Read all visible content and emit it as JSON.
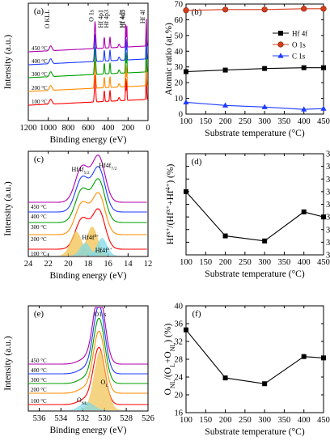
{
  "chart_data": [
    {
      "panel": "(a)",
      "type": "line",
      "xlabel": "Binding energy (eV)",
      "ylabel": "Intensity (a.u.)",
      "xlim": [
        1200,
        0
      ],
      "xticks": [
        1200,
        1000,
        800,
        600,
        400,
        200,
        0
      ],
      "series": [
        {
          "name": "100 °C",
          "color": "#ff0000"
        },
        {
          "name": "200 °C",
          "color": "#ff8c00"
        },
        {
          "name": "300 °C",
          "color": "#00a000"
        },
        {
          "name": "400 °C",
          "color": "#1e3cff"
        },
        {
          "name": "450 °C",
          "color": "#b000b0"
        }
      ],
      "annotations": [
        {
          "text": "O KLL",
          "x": 975
        },
        {
          "text": "O 1s",
          "x": 531
        },
        {
          "text": "Hf 4p1",
          "x": 438
        },
        {
          "text": "Hf 4p3",
          "x": 381
        },
        {
          "text": "Hf 4d3",
          "x": 224
        },
        {
          "text": "Hf 4d5",
          "x": 213
        },
        {
          "text": "Hf 4f",
          "x": 17
        }
      ]
    },
    {
      "panel": "(b)",
      "type": "line",
      "xlabel": "Substrate temperature (°C)",
      "ylabel": "Atomic ratio (at.%)",
      "xlim": [
        100,
        450
      ],
      "ylim": [
        0,
        70
      ],
      "xticks": [
        100,
        150,
        200,
        250,
        300,
        350,
        400,
        450
      ],
      "yticks": [
        0,
        10,
        20,
        30,
        40,
        50,
        60,
        70
      ],
      "legend": "top-right",
      "x": [
        100,
        200,
        300,
        400,
        450
      ],
      "series": [
        {
          "name": "Hf 4f",
          "color": "#000000",
          "marker": "square",
          "values": [
            27,
            28,
            29,
            29.5,
            29.5
          ]
        },
        {
          "name": "O 1s",
          "color": "#d43f1e",
          "marker": "circle",
          "values": [
            66,
            66.5,
            66.5,
            67,
            67
          ]
        },
        {
          "name": "C 1s",
          "color": "#1e3cff",
          "marker": "triangle",
          "values": [
            7.5,
            5.5,
            4.5,
            3,
            3.5
          ]
        }
      ]
    },
    {
      "panel": "(c)",
      "type": "line",
      "xlabel": "Binding energy (eV)",
      "ylabel": "Intensity (a.u.)",
      "xlim": [
        24,
        12
      ],
      "xticks": [
        24,
        22,
        20,
        18,
        16,
        14,
        12
      ],
      "series": [
        {
          "name": "100 °C",
          "color": "#ff0000"
        },
        {
          "name": "200 °C",
          "color": "#ff8c00"
        },
        {
          "name": "300 °C",
          "color": "#00a000"
        },
        {
          "name": "400 °C",
          "color": "#1e3cff"
        },
        {
          "name": "450 °C",
          "color": "#b000b0"
        }
      ],
      "peaks_top": [
        {
          "text": "Hf4f5/2",
          "x": 18.6
        },
        {
          "text": "Hf4f7/2",
          "x": 17.0
        }
      ],
      "peaks_fit": [
        {
          "text": "Hf4f4+",
          "x": 17.6
        },
        {
          "text": "Hf4fx+",
          "x": 16.6
        }
      ]
    },
    {
      "panel": "(d)",
      "type": "line",
      "xlabel": "Substrate temperature (°C)",
      "ylabel": "Hfx+/(Hfx++Hf4+) (%)",
      "xlim": [
        100,
        450
      ],
      "ylim": [
        31,
        39
      ],
      "xticks": [
        100,
        150,
        200,
        250,
        300,
        350,
        400,
        450
      ],
      "yticks": [
        31,
        32,
        33,
        34,
        35,
        36,
        37,
        38,
        39
      ],
      "x": [
        100,
        200,
        300,
        400,
        450
      ],
      "series": [
        {
          "name": "",
          "color": "#000000",
          "marker": "square",
          "values": [
            36.0,
            32.5,
            32.1,
            34.4,
            34.0
          ]
        }
      ]
    },
    {
      "panel": "(e)",
      "type": "line",
      "xlabel": "Binding energy (eV)",
      "ylabel": "Intensity (a.u.)",
      "xlim": [
        537,
        526
      ],
      "xticks": [
        536,
        534,
        532,
        530,
        528,
        526
      ],
      "series": [
        {
          "name": "100 °C",
          "color": "#ff0000"
        },
        {
          "name": "200 °C",
          "color": "#ff8c00"
        },
        {
          "name": "300 °C",
          "color": "#00a000"
        },
        {
          "name": "400 °C",
          "color": "#1e3cff"
        },
        {
          "name": "450 °C",
          "color": "#b000b0"
        }
      ],
      "peaks": [
        {
          "text": "O1 s",
          "x": 530.4
        },
        {
          "text": "OL",
          "x": 530.3
        },
        {
          "text": "ONL",
          "x": 531.6
        }
      ]
    },
    {
      "panel": "(f)",
      "type": "line",
      "xlabel": "Substrate temperature (°C)",
      "ylabel": "ONL/(OL+ONL) (%)",
      "xlim": [
        100,
        450
      ],
      "ylim": [
        16,
        40
      ],
      "xticks": [
        100,
        150,
        200,
        250,
        300,
        350,
        400,
        450
      ],
      "yticks": [
        16,
        20,
        24,
        28,
        32,
        36,
        40
      ],
      "x": [
        100,
        200,
        300,
        400,
        450
      ],
      "series": [
        {
          "name": "",
          "color": "#000000",
          "marker": "square",
          "values": [
            34.6,
            23.8,
            22.5,
            28.6,
            28.3
          ]
        }
      ]
    }
  ]
}
